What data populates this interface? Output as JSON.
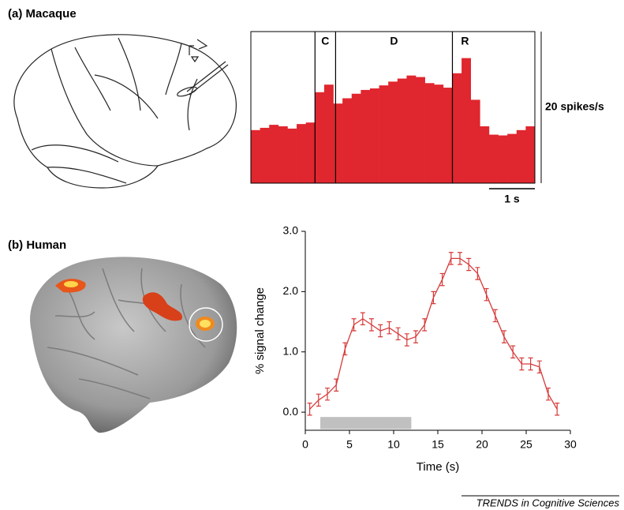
{
  "chart_data": [
    {
      "type": "histogram",
      "title": "(a) Macaque",
      "color": "#e0262e",
      "bins": [
        0,
        0.2,
        0.4,
        0.6,
        0.8,
        1.0,
        1.2,
        1.4,
        1.6,
        1.8,
        2.0,
        2.2,
        2.4,
        2.6,
        2.8,
        3.0,
        3.2,
        3.4,
        3.6,
        3.8,
        4.0,
        4.2,
        4.4,
        4.6,
        4.8,
        5.0,
        5.2,
        5.4,
        5.6,
        5.8,
        6.0,
        6.2
      ],
      "values": [
        7.0,
        7.3,
        7.7,
        7.5,
        7.2,
        7.8,
        8.0,
        12.0,
        13.0,
        10.5,
        11.2,
        11.8,
        12.3,
        12.5,
        12.9,
        13.4,
        13.8,
        14.2,
        14.0,
        13.2,
        13.0,
        12.6,
        14.5,
        16.5,
        11.0,
        7.5,
        6.4,
        6.3,
        6.5,
        7.0,
        7.5
      ],
      "xlim": [
        0,
        6.2
      ],
      "ylim": [
        0,
        20
      ],
      "event_lines": [
        1.4,
        1.85,
        4.4
      ],
      "event_labels": [
        "C",
        "D",
        "R"
      ],
      "scale_bar_y": {
        "value": 20,
        "label": "20 spikes/s"
      },
      "scale_bar_x": {
        "value": 1,
        "label": "1 s"
      }
    },
    {
      "type": "line",
      "title": "(b) Human",
      "color": "#d63a3a",
      "x": [
        0.5,
        1.5,
        2.5,
        3.5,
        4.5,
        5.5,
        6.5,
        7.5,
        8.5,
        9.5,
        10.5,
        11.5,
        12.5,
        13.5,
        14.5,
        15.5,
        16.5,
        17.5,
        18.5,
        19.5,
        20.5,
        21.5,
        22.5,
        23.5,
        24.5,
        25.5,
        26.5,
        27.5,
        28.5
      ],
      "values": [
        0.05,
        0.2,
        0.3,
        0.45,
        1.05,
        1.45,
        1.55,
        1.45,
        1.35,
        1.4,
        1.3,
        1.2,
        1.25,
        1.45,
        1.9,
        2.2,
        2.55,
        2.55,
        2.45,
        2.3,
        1.95,
        1.6,
        1.25,
        1.0,
        0.8,
        0.8,
        0.75,
        0.3,
        0.05
      ],
      "errors": [
        0.1,
        0.1,
        0.1,
        0.1,
        0.1,
        0.1,
        0.1,
        0.1,
        0.1,
        0.1,
        0.1,
        0.1,
        0.1,
        0.1,
        0.1,
        0.1,
        0.1,
        0.1,
        0.1,
        0.1,
        0.1,
        0.1,
        0.1,
        0.1,
        0.1,
        0.1,
        0.1,
        0.1,
        0.1
      ],
      "xlim": [
        0,
        30
      ],
      "ylim": [
        -0.3,
        3.0
      ],
      "xticks": [
        0,
        5,
        10,
        15,
        20,
        25,
        30
      ],
      "yticks": [
        {
          "value": 0,
          "label": "0.0"
        },
        {
          "value": 1,
          "label": "1.0"
        },
        {
          "value": 2,
          "label": "2.0"
        },
        {
          "value": 3,
          "label": "3.0"
        }
      ],
      "xlabel": "Time (s)",
      "ylabel": "% signal change",
      "shaded_interval": {
        "x": [
          1.7,
          12
        ],
        "y": [
          -0.28,
          -0.08
        ],
        "color": "#c0c0c0"
      }
    }
  ],
  "source": "TRENDS in Cognitive Sciences"
}
